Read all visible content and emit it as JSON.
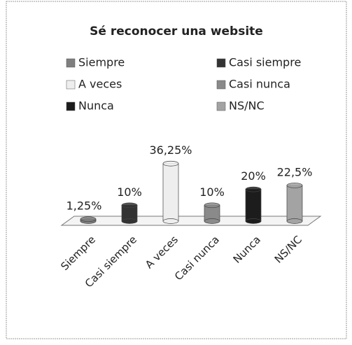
{
  "chart_data": {
    "type": "bar3d",
    "title": "Sé reconocer una website",
    "categories": [
      "Siempre",
      "Casi siempre",
      "A veces",
      "Casi nunca",
      "Nunca",
      "NS/NC"
    ],
    "values": [
      1.25,
      10,
      36.25,
      10,
      20,
      22.5
    ],
    "value_labels": [
      "1,25%",
      "10%",
      "36,25%",
      "10%",
      "20%",
      "22,5%"
    ],
    "colors": [
      "#7f7f7f",
      "#333333",
      "#eeeeee",
      "#8a8a8a",
      "#1c1c1c",
      "#a3a3a3"
    ],
    "legend": "top"
  }
}
